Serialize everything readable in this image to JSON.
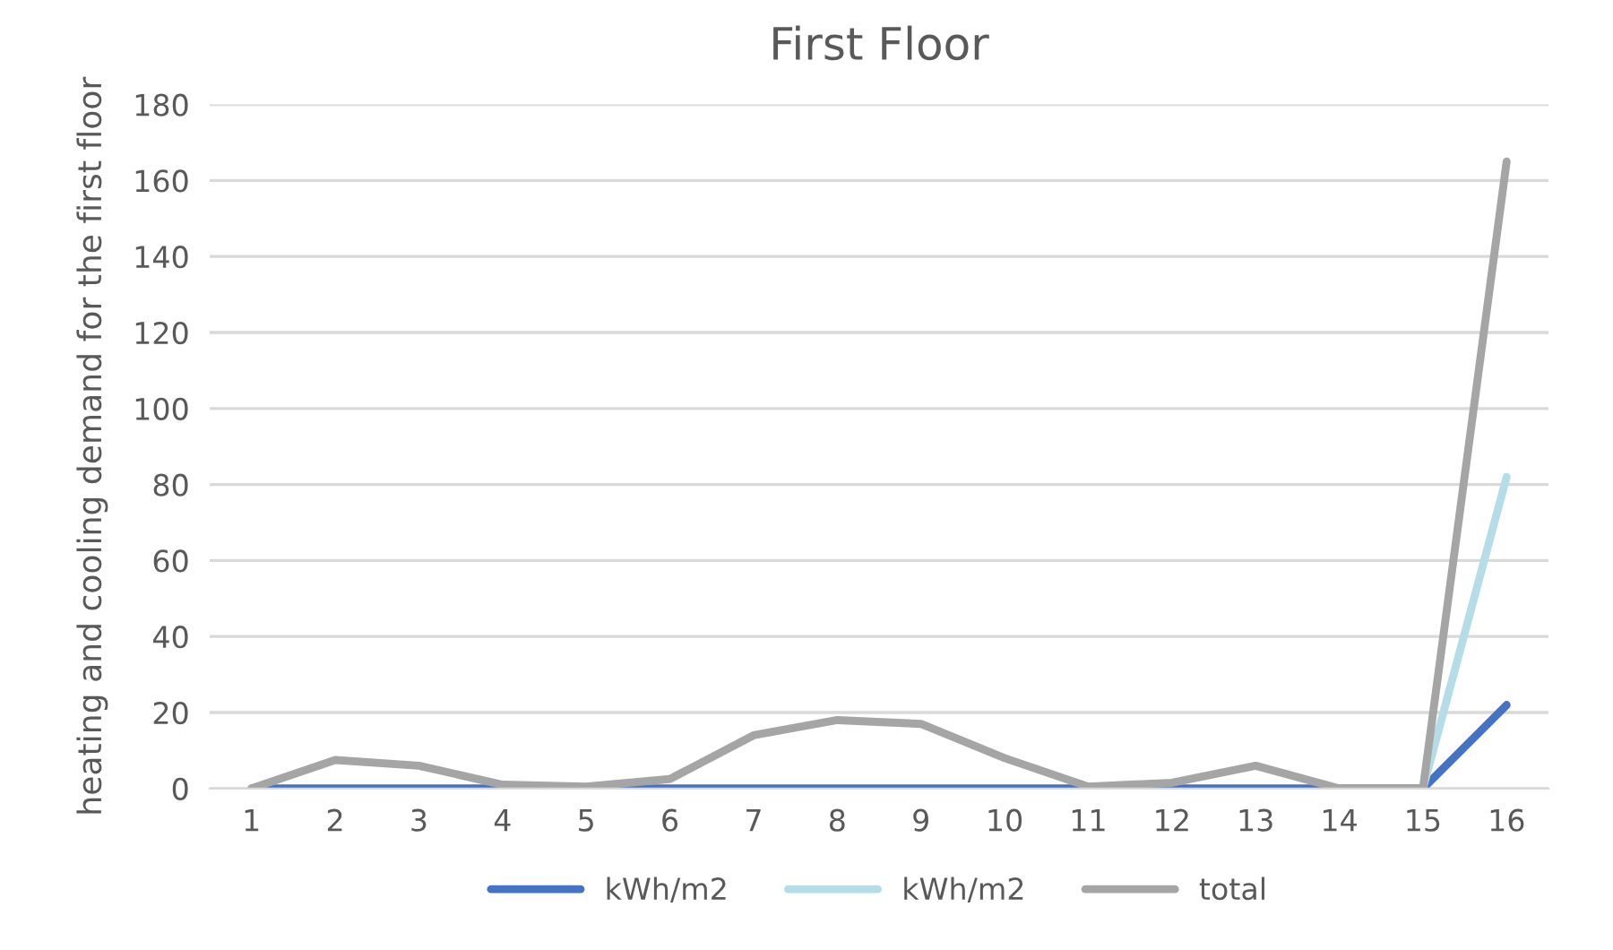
{
  "chart_data": {
    "type": "line",
    "title": "First Floor",
    "ylabel": "heating and cooling demand for the first floor",
    "categories": [
      "1",
      "2",
      "3",
      "4",
      "5",
      "6",
      "7",
      "8",
      "9",
      "10",
      "11",
      "12",
      "13",
      "14",
      "15",
      "16"
    ],
    "series": [
      {
        "name": "kWh/m2",
        "color": "#4472c4",
        "values": [
          0,
          0,
          0,
          0,
          0,
          0,
          0,
          0,
          0,
          0,
          0,
          0,
          0,
          0,
          0,
          22
        ]
      },
      {
        "name": "kWh/m2",
        "color": "#b4dde8",
        "values": [
          null,
          null,
          null,
          null,
          null,
          null,
          null,
          null,
          null,
          null,
          null,
          null,
          null,
          null,
          0,
          82
        ]
      },
      {
        "name": "total",
        "color": "#a5a5a5",
        "values": [
          0,
          7.5,
          6,
          1,
          0.5,
          2.5,
          14,
          18,
          17,
          8,
          0.5,
          1.5,
          6,
          0,
          0,
          165
        ]
      }
    ],
    "ylim": [
      0,
      180
    ],
    "yticks": [
      0,
      20,
      40,
      60,
      80,
      100,
      120,
      140,
      160,
      180
    ],
    "grid": "y",
    "legend": "bottom",
    "marker": "none",
    "line_style": "solid"
  }
}
